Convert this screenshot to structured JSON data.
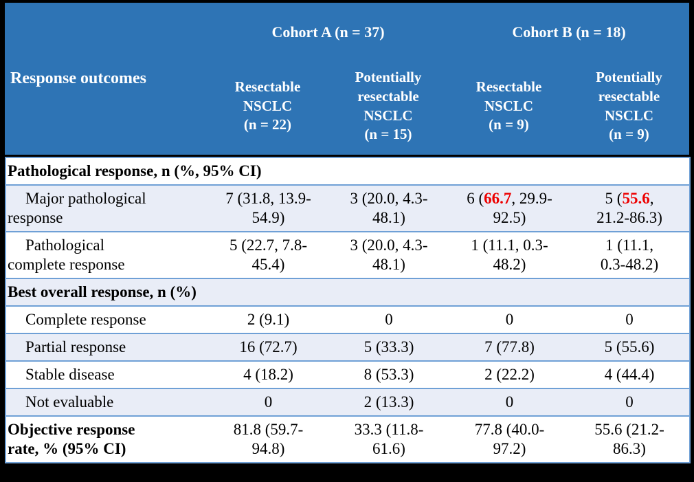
{
  "figure": {
    "type": "clinical-results-table",
    "colors": {
      "header_bg": "#2E74B5",
      "header_text": "#FFFFFF",
      "row_alt_bg": "#E9EDF7",
      "border": "#6FA0D6",
      "highlight_red": "#ED0000",
      "frame": "#000000"
    },
    "header": {
      "row_label_header": "Response outcomes",
      "cohorts": [
        {
          "label": "Cohort A (n = 37)",
          "columns": [
            {
              "label": "Resectable\nNSCLC\n(n = 22)"
            },
            {
              "label": "Potentially\nresectable\nNSCLC\n(n = 15)"
            }
          ]
        },
        {
          "label": "Cohort B (n = 18)",
          "columns": [
            {
              "label": "Resectable\nNSCLC\n(n = 9)"
            },
            {
              "label": "Potentially\nresectable\nNSCLC\n(n = 9)"
            }
          ]
        }
      ]
    },
    "rows": [
      {
        "type": "section",
        "label": "Pathological response, n (%, 95% CI)"
      },
      {
        "type": "data",
        "label": "Major pathological\nresponse",
        "indent": true,
        "cells": [
          [
            {
              "t": "7 (31.8, 13.9-\n54.9)"
            }
          ],
          [
            {
              "t": "3 (20.0, 4.3-\n48.1)"
            }
          ],
          [
            {
              "t": "6 ("
            },
            {
              "t": "66.7",
              "red": true
            },
            {
              "t": ", 29.9-\n92.5)"
            }
          ],
          [
            {
              "t": "5 ("
            },
            {
              "t": "55.6",
              "red": true
            },
            {
              "t": ",\n21.2-86.3)"
            }
          ]
        ]
      },
      {
        "type": "data",
        "label": "Pathological\ncomplete response",
        "indent": true,
        "cells": [
          [
            {
              "t": "5 (22.7, 7.8-\n45.4)"
            }
          ],
          [
            {
              "t": "3 (20.0, 4.3-\n48.1)"
            }
          ],
          [
            {
              "t": "1 (11.1, 0.3-\n48.2)"
            }
          ],
          [
            {
              "t": "1 (11.1,\n0.3-48.2)"
            }
          ]
        ]
      },
      {
        "type": "section",
        "label": "Best overall response, n (%)"
      },
      {
        "type": "data",
        "label": "Complete response",
        "indent": true,
        "cells": [
          [
            {
              "t": "2 (9.1)"
            }
          ],
          [
            {
              "t": "0"
            }
          ],
          [
            {
              "t": "0"
            }
          ],
          [
            {
              "t": "0"
            }
          ]
        ]
      },
      {
        "type": "data",
        "label": "Partial response",
        "indent": true,
        "cells": [
          [
            {
              "t": "16 (72.7)"
            }
          ],
          [
            {
              "t": "5 (33.3)"
            }
          ],
          [
            {
              "t": "7 (77.8)"
            }
          ],
          [
            {
              "t": "5 (55.6)"
            }
          ]
        ]
      },
      {
        "type": "data",
        "label": "Stable disease",
        "indent": true,
        "cells": [
          [
            {
              "t": "4 (18.2)"
            }
          ],
          [
            {
              "t": "8 (53.3)"
            }
          ],
          [
            {
              "t": "2 (22.2)"
            }
          ],
          [
            {
              "t": "4 (44.4)"
            }
          ]
        ]
      },
      {
        "type": "data",
        "label": "Not evaluable",
        "indent": true,
        "cells": [
          [
            {
              "t": "0"
            }
          ],
          [
            {
              "t": "2 (13.3)"
            }
          ],
          [
            {
              "t": "0"
            }
          ],
          [
            {
              "t": "0"
            }
          ]
        ]
      },
      {
        "type": "data",
        "label": "Objective response\nrate, % (95% CI)",
        "bold": true,
        "cells": [
          [
            {
              "t": "81.8 (59.7-\n94.8)"
            }
          ],
          [
            {
              "t": "33.3 (11.8-\n61.6)"
            }
          ],
          [
            {
              "t": "77.8 (40.0-\n97.2)"
            }
          ],
          [
            {
              "t": "55.6 (21.2-\n86.3)"
            }
          ]
        ]
      }
    ]
  }
}
